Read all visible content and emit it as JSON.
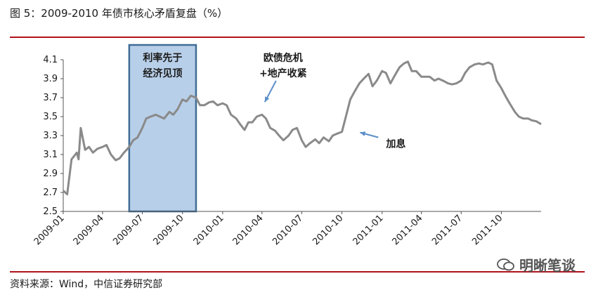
{
  "figure_title": "图 5：2009-2010 年债市核心矛盾复盘（%）",
  "source_note": "资料来源：Wind，中信证券研究部",
  "watermark_text": "明晰笔谈",
  "colors": {
    "rule": "#b0121b",
    "line": "#8a8a8a",
    "box_fill": "#b8cfe9",
    "box_border": "#3f6d96",
    "arrow": "#5b8fc8"
  },
  "chart_data": {
    "type": "line",
    "title": "",
    "xlabel": "",
    "ylabel": "",
    "ylim": [
      2.5,
      4.1
    ],
    "yticks": [
      "2.5",
      "2.7",
      "2.9",
      "3.1",
      "3.3",
      "3.5",
      "3.7",
      "3.9",
      "4.1"
    ],
    "xlim": [
      "2009-01-01",
      "2011-12-31"
    ],
    "xticks": [
      "2009-01",
      "2009-04",
      "2009-07",
      "2009-10",
      "2010-01",
      "2010-04",
      "2010-07",
      "2010-10",
      "2011-01",
      "2011-04",
      "2011-07",
      "2011-10"
    ],
    "grid": false,
    "series": [
      {
        "x": [
          "2009-01-01",
          "2009-01-10",
          "2009-01-20",
          "2009-02-01",
          "2009-02-05",
          "2009-02-10",
          "2009-02-20",
          "2009-03-01",
          "2009-03-10",
          "2009-03-20",
          "2009-04-01",
          "2009-04-10",
          "2009-04-20",
          "2009-05-01",
          "2009-05-10",
          "2009-05-20",
          "2009-06-01",
          "2009-06-10",
          "2009-06-20",
          "2009-07-01",
          "2009-07-10",
          "2009-07-20",
          "2009-08-01",
          "2009-08-10",
          "2009-08-20",
          "2009-09-01",
          "2009-09-10",
          "2009-09-20",
          "2009-10-01",
          "2009-10-10",
          "2009-10-20",
          "2009-11-01",
          "2009-11-10",
          "2009-11-20",
          "2009-12-01",
          "2009-12-10",
          "2009-12-20",
          "2010-01-01",
          "2010-01-10",
          "2010-01-20",
          "2010-02-01",
          "2010-02-10",
          "2010-02-20",
          "2010-03-01",
          "2010-03-10",
          "2010-03-20",
          "2010-04-01",
          "2010-04-10",
          "2010-04-20",
          "2010-05-01",
          "2010-05-10",
          "2010-05-20",
          "2010-06-01",
          "2010-06-10",
          "2010-06-20",
          "2010-07-01",
          "2010-07-10",
          "2010-07-20",
          "2010-08-01",
          "2010-08-10",
          "2010-08-20",
          "2010-09-01",
          "2010-09-10",
          "2010-09-20",
          "2010-10-01",
          "2010-10-10",
          "2010-10-20",
          "2010-11-01",
          "2010-11-10",
          "2010-11-20",
          "2010-12-01",
          "2010-12-10",
          "2010-12-20",
          "2011-01-01",
          "2011-01-10",
          "2011-01-20",
          "2011-02-01",
          "2011-02-10",
          "2011-02-20",
          "2011-03-01",
          "2011-03-10",
          "2011-03-20",
          "2011-04-01",
          "2011-04-10",
          "2011-04-20",
          "2011-05-01",
          "2011-05-10",
          "2011-05-20",
          "2011-06-01",
          "2011-06-10",
          "2011-06-20",
          "2011-07-01",
          "2011-07-10",
          "2011-07-20",
          "2011-08-01",
          "2011-08-10",
          "2011-08-20",
          "2011-09-01",
          "2011-09-10",
          "2011-09-20",
          "2011-10-01",
          "2011-10-10",
          "2011-10-20",
          "2011-11-01",
          "2011-11-10",
          "2011-11-20",
          "2011-12-01",
          "2011-12-10",
          "2011-12-20",
          "2011-12-31"
        ],
        "y": [
          2.72,
          2.68,
          3.05,
          3.12,
          3.05,
          3.38,
          3.15,
          3.18,
          3.12,
          3.16,
          3.18,
          3.2,
          3.1,
          3.04,
          3.06,
          3.12,
          3.18,
          3.25,
          3.28,
          3.38,
          3.48,
          3.5,
          3.52,
          3.5,
          3.48,
          3.55,
          3.52,
          3.58,
          3.68,
          3.66,
          3.72,
          3.7,
          3.62,
          3.62,
          3.65,
          3.66,
          3.62,
          3.64,
          3.62,
          3.52,
          3.48,
          3.42,
          3.36,
          3.44,
          3.44,
          3.5,
          3.52,
          3.48,
          3.38,
          3.35,
          3.3,
          3.25,
          3.3,
          3.36,
          3.38,
          3.25,
          3.18,
          3.22,
          3.26,
          3.22,
          3.28,
          3.24,
          3.3,
          3.32,
          3.34,
          3.5,
          3.68,
          3.78,
          3.85,
          3.9,
          3.95,
          3.82,
          3.88,
          3.98,
          3.96,
          3.85,
          3.95,
          4.02,
          4.06,
          4.08,
          3.98,
          3.98,
          3.92,
          3.92,
          3.92,
          3.88,
          3.9,
          3.88,
          3.85,
          3.84,
          3.85,
          3.88,
          3.96,
          4.02,
          4.05,
          4.06,
          4.05,
          4.07,
          4.05,
          3.88,
          3.8,
          3.72,
          3.64,
          3.55,
          3.5,
          3.48,
          3.48,
          3.46,
          3.45,
          3.42
        ]
      }
    ],
    "annotations": [
      {
        "lines": [
          "利率先于",
          "经济见顶"
        ],
        "kind": "box",
        "x_start": "2009-06-01",
        "x_end": "2009-11-01"
      },
      {
        "lines": [
          "欧债危机",
          "+地产收紧"
        ],
        "kind": "arrow",
        "target_x": "2010-04-01",
        "target_y": 3.55
      },
      {
        "lines": [
          "加息"
        ],
        "kind": "arrow",
        "target_x": "2010-10-20",
        "target_y": 3.34
      }
    ]
  }
}
